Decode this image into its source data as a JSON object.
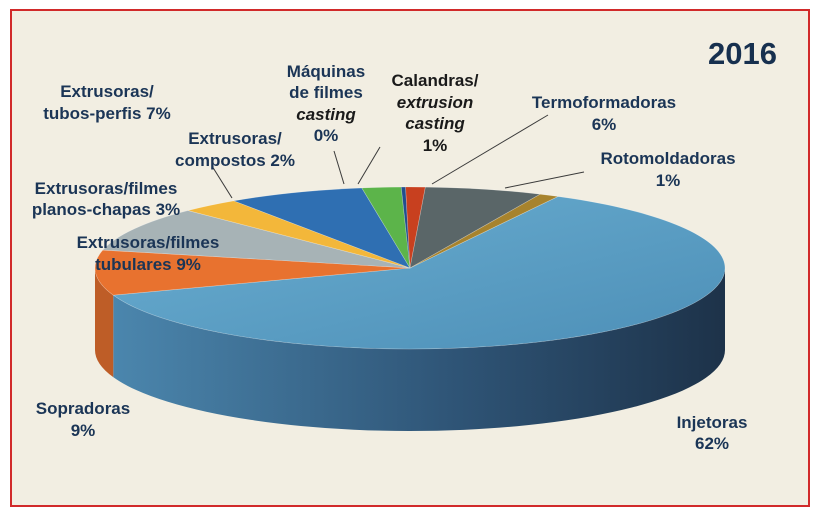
{
  "year_label": "2016",
  "chart_data": {
    "type": "pie",
    "style": "3d",
    "title": "2016",
    "slices": [
      {
        "name": "Injetoras",
        "value": 62,
        "display": "62%",
        "color": "#5a9cc1"
      },
      {
        "name": "Sopradoras",
        "value": 9,
        "display": "9%",
        "color": "#e8722f"
      },
      {
        "name": "Extrusoras/filmes tubulares",
        "value": 9,
        "display": "9%",
        "color": "#a7b3b6"
      },
      {
        "name": "Extrusoras/filmes planos-chapas",
        "value": 3,
        "display": "3%",
        "color": "#f3b73a"
      },
      {
        "name": "Extrusoras/tubos-perfis",
        "value": 7,
        "display": "7%",
        "color": "#2f6fb2"
      },
      {
        "name": "Extrusoras/compostos",
        "value": 2,
        "display": "2%",
        "color": "#5cb44a"
      },
      {
        "name": "Máquinas de filmes casting",
        "value": 0,
        "display": "0%",
        "color": "#214e8e"
      },
      {
        "name": "Calandras/extrusion casting",
        "value": 1,
        "display": "1%",
        "color": "#c8401f"
      },
      {
        "name": "Termoformadoras",
        "value": 6,
        "display": "6%",
        "color": "#5a6668"
      },
      {
        "name": "Rotomoldadoras",
        "value": 1,
        "display": "1%",
        "color": "#a7832d"
      }
    ],
    "labels": {
      "injetoras": [
        "Injetoras",
        "62%"
      ],
      "sopradoras": [
        "Sopradoras",
        "9%"
      ],
      "tubulares": [
        "Extrusoras/filmes",
        "tubulares 9%"
      ],
      "planos": [
        "Extrusoras/filmes",
        "planos-chapas 3%"
      ],
      "tubos": [
        "Extrusoras/",
        "tubos-perfis 7%"
      ],
      "compostos": [
        "Extrusoras/",
        "compostos 2%"
      ],
      "maquinas": [
        "Máquinas",
        "de filmes",
        "casting",
        "0%"
      ],
      "calandras": [
        "Calandras/",
        "extrusion",
        "casting",
        "1%"
      ],
      "termo": [
        "Termoformadoras",
        "6%"
      ],
      "roto": [
        "Rotomoldadoras",
        "1%"
      ]
    }
  }
}
